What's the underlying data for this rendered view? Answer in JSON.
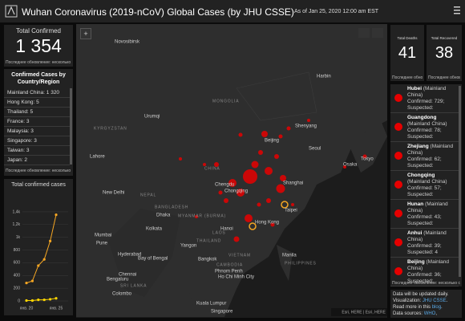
{
  "header": {
    "title": "Wuhan Coronavirus (2019-nCoV) Global Cases (by JHU CSSE)",
    "subtitle": "As of Jan 25, 2020 12:00 am EST"
  },
  "total_confirmed": {
    "label": "Total Confirmed",
    "value": "1 354",
    "note": "Последнее обновление: несколько с"
  },
  "country_list": {
    "title": "Confirmed Cases by Country/Region",
    "items": [
      "Mainland China: 1 320",
      "Hong Kong: 5",
      "Thailand: 5",
      "France: 3",
      "Malaysia: 3",
      "Singapore: 3",
      "Taiwan: 3",
      "Japan: 2"
    ],
    "note": "Последнее обновление: несколько с"
  },
  "chart": {
    "title": "Total confirmed cases",
    "x": [
      "янв. 20",
      null,
      null,
      null,
      null,
      "янв. 25"
    ],
    "series": [
      {
        "color": "#f5a623",
        "values": [
          282,
          314,
          555,
          653,
          941,
          1354
        ]
      },
      {
        "color": "#ffd600",
        "values": [
          6,
          6,
          17,
          18,
          26,
          41
        ]
      }
    ],
    "ylim": [
      0,
      1500
    ],
    "yticks": [
      0,
      200,
      400,
      600,
      800,
      {
        "value": 1000,
        "label": "1k"
      },
      {
        "value": 1200,
        "label": "1,2k"
      },
      {
        "value": 1400,
        "label": "1,4k"
      }
    ]
  },
  "deaths": {
    "label": "Total Deaths",
    "value": "41",
    "note": "Последнее обновл"
  },
  "recovered": {
    "label": "Total Recovered",
    "value": "38",
    "note": "Последнее обновл"
  },
  "province_list": {
    "items": [
      {
        "name": "Hubei",
        "region": "(Mainland China)",
        "confirmed": "Confirmed: 729;",
        "suspected": "Suspected:"
      },
      {
        "name": "Guangdong",
        "region": "(Mainland China)",
        "confirmed": "Confirmed: 78;",
        "suspected": "Suspected:"
      },
      {
        "name": "Zhejiang",
        "region": "(Mainland China)",
        "confirmed": "Confirmed: 62;",
        "suspected": "Suspected:"
      },
      {
        "name": "Chongqing",
        "region": "(Mainland China)",
        "confirmed": "Confirmed: 57;",
        "suspected": "Suspected:"
      },
      {
        "name": "Hunan",
        "region": "(Mainland China)",
        "confirmed": "Confirmed: 43;",
        "suspected": "Suspected:"
      },
      {
        "name": "Anhui",
        "region": "(Mainland China)",
        "confirmed": "Confirmed: 39;",
        "suspected": "Suspected: 4"
      },
      {
        "name": "Beijing",
        "region": "(Mainland China)",
        "confirmed": "Confirmed: 36;",
        "suspected": "Suspected:"
      }
    ],
    "note": "Последнее обновление: несколько сек"
  },
  "footer": {
    "lines": [
      [
        "Data will be updated daily."
      ],
      [
        "Visualization: ",
        "JHU CSSE",
        "."
      ],
      [
        "Read more in this ",
        "blog",
        "."
      ],
      [
        "Data sources: ",
        "WHO",
        ","
      ]
    ]
  },
  "map": {
    "labels": [
      "Novosibirsk",
      "MONGOLIA",
      "Urumqi",
      "KYRGYZSTAN",
      "Harbin",
      "Beijing",
      "Shenyang",
      "Seoul",
      "Tokyo",
      "Osaka",
      "CHINA",
      "Lahore",
      "New Delhi",
      "NEPAL",
      "Chengdu",
      "Chongqing",
      "Shanghai",
      "Taipei",
      "Hong Kong",
      "Hanoi",
      "BANGLADESH",
      "Dhaka",
      "Kolkata",
      "MYANMAR (BURMA)",
      "Mumbai",
      "Pune",
      "Hyderabad",
      "Bay of Bengal",
      "Yangon",
      "THAILAND",
      "LAOS",
      "Bangkok",
      "VIETNAM",
      "CAMBODIA",
      "Phnom Penh",
      "Ho Chi Minh City",
      "Manila",
      "PHILIPPINES",
      "Chennai",
      "Bengaluru",
      "SRI LANKA",
      "Colombo",
      "Kuala Lumpur",
      "Singapore"
    ],
    "attribution": "Esri, HERE | Esri, HERE"
  }
}
